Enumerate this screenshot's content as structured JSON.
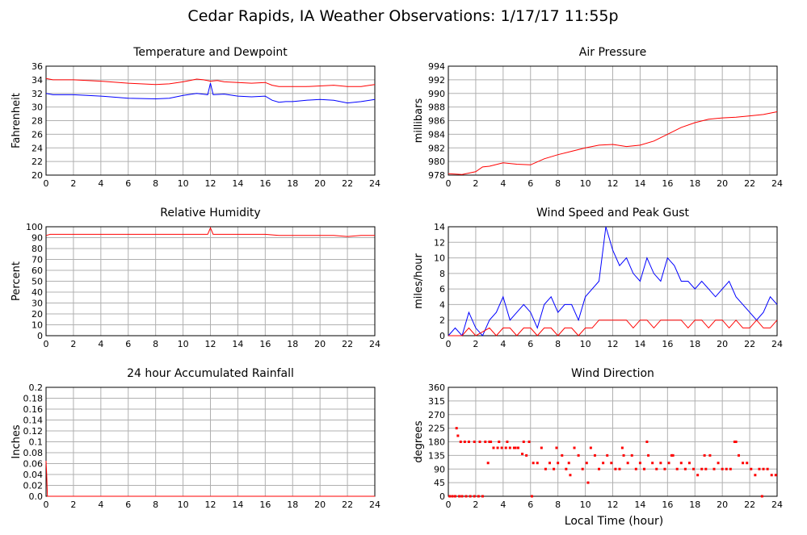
{
  "title": "Cedar Rapids, IA Weather Observations: 1/17/17 11:55p",
  "shared_xlabel": "Local Time (hour)",
  "x_ticks": [
    "0",
    "2",
    "4",
    "6",
    "8",
    "10",
    "12",
    "14",
    "16",
    "18",
    "20",
    "22",
    "24"
  ],
  "colors": {
    "red": "#ff0000",
    "blue": "#0000ff",
    "grid": "#b0b0b0"
  },
  "chart_data": [
    {
      "type": "line",
      "title": "Temperature and Dewpoint",
      "ylabel": "Fahrenheit",
      "xlim": [
        0,
        24
      ],
      "ylim": [
        20,
        36
      ],
      "yticks": [
        "20",
        "22",
        "24",
        "26",
        "28",
        "30",
        "32",
        "34",
        "36"
      ],
      "series": [
        {
          "color": "#ff0000",
          "x": [
            0,
            0.5,
            2,
            4,
            6,
            8,
            9,
            10,
            10.5,
            11,
            11.5,
            12,
            12.5,
            13,
            14,
            15,
            16,
            16.5,
            17,
            18,
            19,
            20,
            21,
            22,
            23,
            24
          ],
          "y": [
            34.2,
            34.0,
            34.0,
            33.8,
            33.5,
            33.3,
            33.4,
            33.7,
            33.9,
            34.1,
            34.0,
            33.8,
            33.9,
            33.7,
            33.6,
            33.5,
            33.6,
            33.2,
            33.0,
            33.0,
            33.0,
            33.1,
            33.2,
            33.0,
            33.0,
            33.3
          ]
        },
        {
          "color": "#0000ff",
          "x": [
            0,
            0.5,
            2,
            4,
            6,
            8,
            9,
            10,
            11,
            11.8,
            12,
            12.2,
            13,
            14,
            15,
            16,
            16.5,
            17,
            17.5,
            18,
            19,
            20,
            21,
            22,
            23,
            24
          ],
          "y": [
            32.0,
            31.8,
            31.8,
            31.6,
            31.3,
            31.2,
            31.3,
            31.7,
            32.0,
            31.8,
            33.5,
            31.8,
            31.9,
            31.6,
            31.5,
            31.6,
            31.0,
            30.7,
            30.8,
            30.8,
            31.0,
            31.1,
            31.0,
            30.6,
            30.8,
            31.1
          ]
        }
      ]
    },
    {
      "type": "line",
      "title": "Air Pressure",
      "ylabel": "millibars",
      "xlim": [
        0,
        24
      ],
      "ylim": [
        978,
        994
      ],
      "yticks": [
        "978",
        "980",
        "982",
        "984",
        "986",
        "988",
        "990",
        "992",
        "994"
      ],
      "series": [
        {
          "color": "#ff0000",
          "x": [
            0,
            1,
            2,
            2.5,
            3,
            4,
            5,
            6,
            7,
            8,
            9,
            10,
            11,
            12,
            13,
            14,
            15,
            16,
            17,
            18,
            19,
            20,
            21,
            22,
            23,
            24
          ],
          "y": [
            978.2,
            978.1,
            978.5,
            979.2,
            979.3,
            979.8,
            979.6,
            979.5,
            980.4,
            981.0,
            981.5,
            982.0,
            982.4,
            982.5,
            982.2,
            982.4,
            983.0,
            984.0,
            985.0,
            985.7,
            986.2,
            986.4,
            986.5,
            986.7,
            986.9,
            987.3
          ]
        }
      ]
    },
    {
      "type": "line",
      "title": "Relative Humidity",
      "ylabel": "Percent",
      "xlim": [
        0,
        24
      ],
      "ylim": [
        0,
        100
      ],
      "yticks": [
        "0",
        "10",
        "20",
        "30",
        "40",
        "50",
        "60",
        "70",
        "80",
        "90",
        "100"
      ],
      "series": [
        {
          "color": "#ff0000",
          "x": [
            0,
            0.3,
            2,
            4,
            6,
            8,
            10,
            11.8,
            12,
            12.2,
            14,
            16,
            17,
            18,
            20,
            21,
            22,
            23,
            24
          ],
          "y": [
            92,
            93,
            93,
            93,
            93,
            93,
            93,
            93,
            99,
            93,
            93,
            93,
            92,
            92,
            92,
            92,
            91,
            92,
            92
          ]
        }
      ]
    },
    {
      "type": "line",
      "title": "Wind Speed and Peak Gust",
      "ylabel": "miles/hour",
      "xlim": [
        0,
        24
      ],
      "ylim": [
        0,
        14
      ],
      "yticks": [
        "0",
        "2",
        "4",
        "6",
        "8",
        "10",
        "12",
        "14"
      ],
      "series": [
        {
          "color": "#0000ff",
          "x": [
            0,
            0.5,
            1,
            1.5,
            2,
            2.5,
            3,
            3.5,
            4,
            4.5,
            5,
            5.5,
            6,
            6.5,
            7,
            7.5,
            8,
            8.5,
            9,
            9.5,
            10,
            10.5,
            11,
            11.5,
            12,
            12.5,
            13,
            13.5,
            14,
            14.5,
            15,
            15.5,
            16,
            16.5,
            17,
            17.5,
            18,
            18.5,
            19,
            19.5,
            20,
            20.5,
            21,
            21.5,
            22,
            22.5,
            23,
            23.5,
            24
          ],
          "y": [
            0,
            1,
            0,
            3,
            1,
            0,
            2,
            3,
            5,
            2,
            3,
            4,
            3,
            1,
            4,
            5,
            3,
            4,
            4,
            2,
            5,
            6,
            7,
            14,
            11,
            9,
            10,
            8,
            7,
            10,
            8,
            7,
            10,
            9,
            7,
            7,
            6,
            7,
            6,
            5,
            6,
            7,
            5,
            4,
            3,
            2,
            3,
            5,
            4
          ]
        },
        {
          "color": "#ff0000",
          "x": [
            0,
            1,
            1.5,
            2,
            3,
            3.5,
            4,
            4.5,
            5,
            5.5,
            6,
            6.5,
            7,
            7.5,
            8,
            8.5,
            9,
            9.5,
            10,
            10.5,
            11,
            11.5,
            12,
            12.5,
            13,
            13.5,
            14,
            14.5,
            15,
            15.5,
            16,
            16.5,
            17,
            17.5,
            18,
            18.5,
            19,
            19.5,
            20,
            20.5,
            21,
            21.5,
            22,
            22.5,
            23,
            23.5,
            24
          ],
          "y": [
            0,
            0,
            1,
            0,
            1,
            0,
            1,
            1,
            0,
            1,
            1,
            0,
            1,
            1,
            0,
            1,
            1,
            0,
            1,
            1,
            2,
            2,
            2,
            2,
            2,
            1,
            2,
            2,
            1,
            2,
            2,
            2,
            2,
            1,
            2,
            2,
            1,
            2,
            2,
            1,
            2,
            1,
            1,
            2,
            1,
            1,
            2
          ]
        }
      ]
    },
    {
      "type": "line",
      "title": "24 hour Accumulated Rainfall",
      "ylabel": "Inches",
      "xlim": [
        0,
        24
      ],
      "ylim": [
        0,
        0.2
      ],
      "yticks": [
        "0.0",
        "0.02",
        "0.04",
        "0.06",
        "0.08",
        "0.1",
        "0.12",
        "0.14",
        "0.16",
        "0.18",
        "0.2"
      ],
      "series": [
        {
          "color": "#ff0000",
          "x": [
            0,
            0.05,
            0.1,
            24
          ],
          "y": [
            0.065,
            0.04,
            0,
            0
          ]
        }
      ]
    },
    {
      "type": "scatter",
      "title": "Wind Direction",
      "ylabel": "degrees",
      "xlim": [
        0,
        24
      ],
      "ylim": [
        0,
        360
      ],
      "yticks": [
        "0",
        "45",
        "90",
        "135",
        "180",
        "225",
        "270",
        "315",
        "360"
      ],
      "series": [
        {
          "color": "#ff0000",
          "x": [
            0.1,
            0.3,
            0.5,
            0.6,
            0.8,
            1.0,
            1.3,
            1.6,
            1.9,
            2.2,
            2.5,
            0.7,
            0.9,
            1.2,
            1.5,
            1.9,
            2.3,
            2.7,
            3.0,
            3.3,
            3.6,
            3.9,
            4.2,
            4.5,
            4.8,
            5.1,
            5.4,
            5.7,
            3.1,
            3.7,
            4.3,
            4.9,
            5.5,
            5.9,
            6.2,
            6.5,
            6.8,
            7.1,
            7.4,
            7.7,
            8.0,
            8.3,
            8.6,
            8.9,
            9.2,
            9.5,
            9.8,
            10.1,
            10.4,
            10.7,
            11.0,
            11.3,
            11.6,
            11.9,
            12.2,
            12.5,
            12.8,
            13.1,
            13.4,
            13.7,
            14.0,
            14.3,
            14.6,
            14.9,
            15.2,
            15.5,
            15.8,
            16.1,
            16.4,
            16.7,
            17.0,
            17.3,
            17.6,
            17.9,
            18.2,
            18.5,
            18.8,
            19.1,
            19.4,
            19.7,
            20.0,
            20.3,
            20.6,
            20.9,
            21.2,
            21.5,
            21.8,
            22.1,
            22.4,
            22.7,
            23.0,
            23.3,
            23.6,
            23.9,
            2.9,
            6.1,
            7.9,
            8.8,
            10.2,
            12.7,
            14.5,
            16.3,
            18.7,
            21.0,
            22.9
          ],
          "y": [
            0,
            0,
            0,
            225,
            0,
            0,
            0,
            0,
            0,
            0,
            0,
            200,
            180,
            180,
            180,
            180,
            180,
            180,
            180,
            160,
            160,
            160,
            160,
            160,
            160,
            160,
            140,
            135,
            180,
            180,
            180,
            160,
            180,
            180,
            110,
            110,
            160,
            90,
            110,
            90,
            110,
            135,
            90,
            70,
            160,
            135,
            90,
            110,
            160,
            135,
            90,
            110,
            135,
            110,
            90,
            90,
            135,
            110,
            135,
            90,
            110,
            90,
            135,
            110,
            90,
            110,
            90,
            110,
            135,
            90,
            110,
            90,
            110,
            90,
            70,
            90,
            90,
            135,
            90,
            110,
            90,
            90,
            90,
            180,
            135,
            110,
            110,
            90,
            70,
            90,
            90,
            90,
            70,
            70,
            110,
            0,
            160,
            110,
            45,
            160,
            180,
            135,
            135,
            180,
            0
          ]
        }
      ]
    }
  ]
}
